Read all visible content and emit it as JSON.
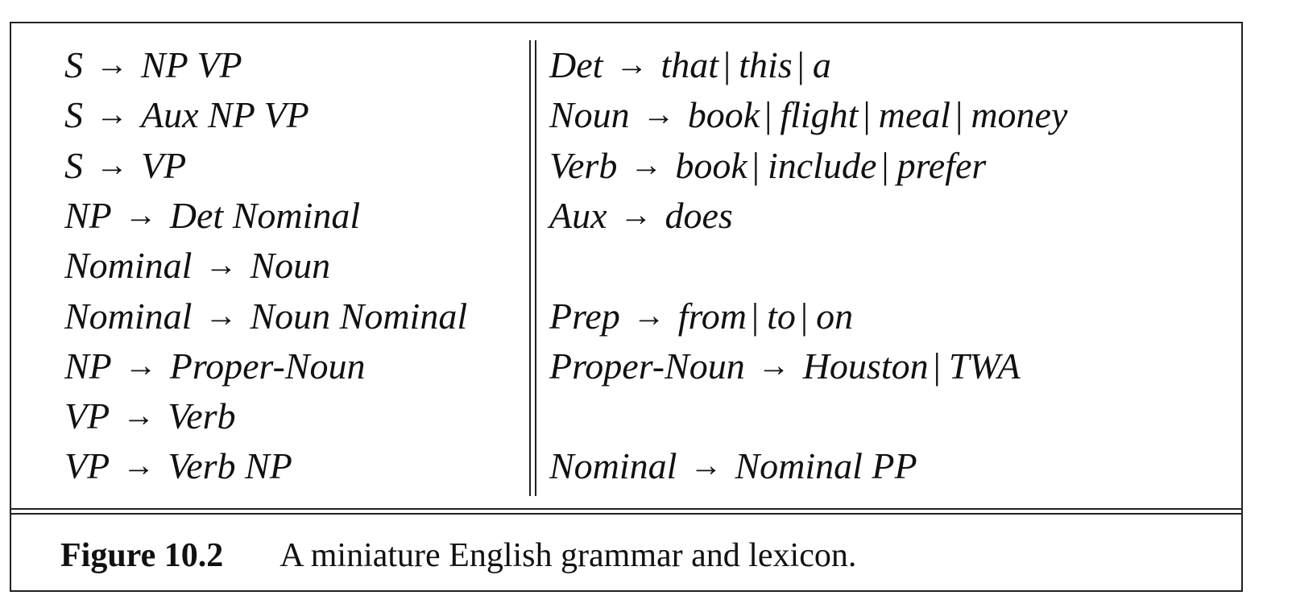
{
  "left_rules": [
    {
      "lhs": "S",
      "arrow": "→",
      "rhs": [
        "NP VP"
      ]
    },
    {
      "lhs": "S",
      "arrow": "→",
      "rhs": [
        "Aux NP VP"
      ]
    },
    {
      "lhs": "S",
      "arrow": "→",
      "rhs": [
        "VP"
      ]
    },
    {
      "lhs": "NP",
      "arrow": "→",
      "rhs": [
        "Det Nominal"
      ]
    },
    {
      "lhs": "Nominal",
      "arrow": "→",
      "rhs": [
        "Noun"
      ]
    },
    {
      "lhs": "Nominal",
      "arrow": "→",
      "rhs": [
        "Noun Nominal"
      ]
    },
    {
      "lhs": "NP",
      "arrow": "→",
      "rhs": [
        "Proper-Noun"
      ]
    },
    {
      "lhs": "VP",
      "arrow": "→",
      "rhs": [
        "Verb"
      ]
    },
    {
      "lhs": "VP",
      "arrow": "→",
      "rhs": [
        "Verb NP"
      ]
    }
  ],
  "right_rules": [
    {
      "row": 0,
      "lhs": "Det",
      "arrow": "→",
      "rhs": [
        "that",
        "this",
        "a"
      ]
    },
    {
      "row": 1,
      "lhs": "Noun",
      "arrow": "→",
      "rhs": [
        "book",
        "flight",
        "meal",
        "money"
      ]
    },
    {
      "row": 2,
      "lhs": "Verb",
      "arrow": "→",
      "rhs": [
        "book",
        "include",
        "prefer"
      ]
    },
    {
      "row": 3,
      "lhs": "Aux",
      "arrow": "→",
      "rhs": [
        "does"
      ]
    },
    {
      "row": 5,
      "lhs": "Prep",
      "arrow": "→",
      "rhs": [
        "from",
        "to",
        "on"
      ]
    },
    {
      "row": 6,
      "lhs": "Proper-Noun",
      "arrow": "→",
      "rhs": [
        "Houston",
        "TWA"
      ]
    },
    {
      "row": 8,
      "lhs": "Nominal",
      "arrow": "→",
      "rhs": [
        "Nominal PP"
      ]
    }
  ],
  "caption": {
    "label": "Figure 10.2",
    "text": "A miniature English grammar and lexicon."
  }
}
